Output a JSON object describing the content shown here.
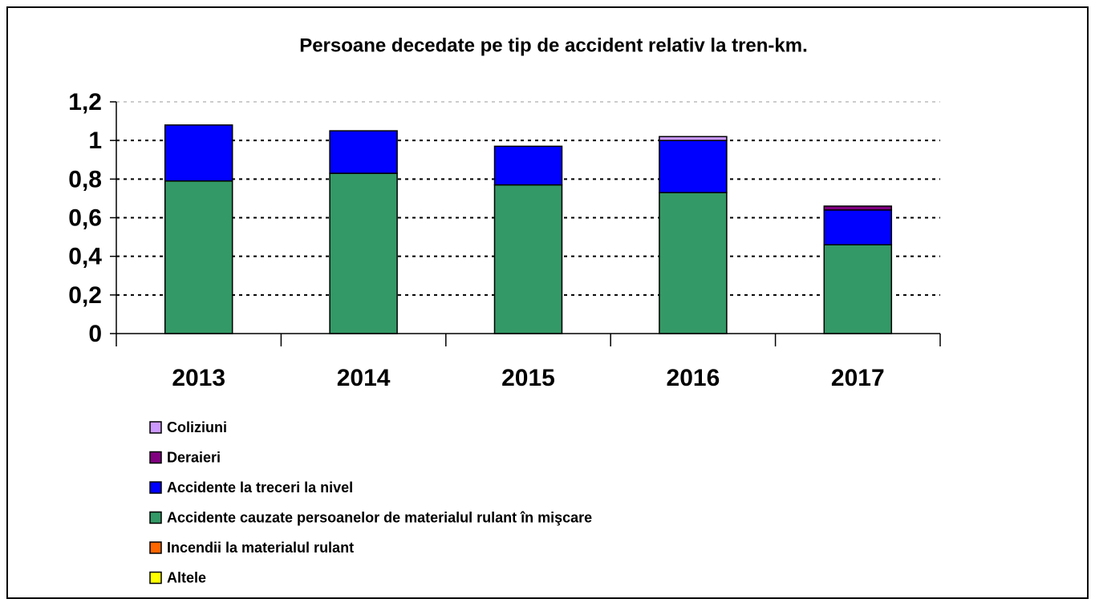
{
  "chart_data": {
    "type": "stacked_bar",
    "title": "Persoane decedate pe tip de accident relativ la tren-km.",
    "categories": [
      "2013",
      "2014",
      "2015",
      "2016",
      "2017"
    ],
    "series": [
      {
        "name": "Altele",
        "color": "#ffff00",
        "values": [
          0,
          0,
          0,
          0,
          0
        ]
      },
      {
        "name": "Incendii la materialul rulant",
        "color": "#ff6600",
        "values": [
          0,
          0,
          0,
          0,
          0
        ]
      },
      {
        "name": "Accidente cauzate persoanelor de materialul rulant în mişcare",
        "color": "#339966",
        "values": [
          0.79,
          0.83,
          0.77,
          0.73,
          0.46
        ]
      },
      {
        "name": "Accidente la treceri la nivel",
        "color": "#0000ff",
        "values": [
          0.29,
          0.22,
          0.2,
          0.27,
          0.18
        ]
      },
      {
        "name": "Deraieri",
        "color": "#800080",
        "values": [
          0,
          0,
          0,
          0,
          0.02
        ]
      },
      {
        "name": "Coliziuni",
        "color": "#cc99ff",
        "values": [
          0,
          0,
          0,
          0.02,
          0
        ]
      }
    ],
    "ylim": [
      0,
      1.2
    ],
    "yticks": [
      0,
      {
        "value": 0.2,
        "label": "0,2"
      },
      {
        "value": 0.4,
        "label": "0,4"
      },
      {
        "value": 0.6,
        "label": "0,6"
      },
      {
        "value": 0.8,
        "label": "0,8"
      },
      1,
      {
        "value": 1.2,
        "label": "1,2"
      }
    ],
    "grid": true
  }
}
